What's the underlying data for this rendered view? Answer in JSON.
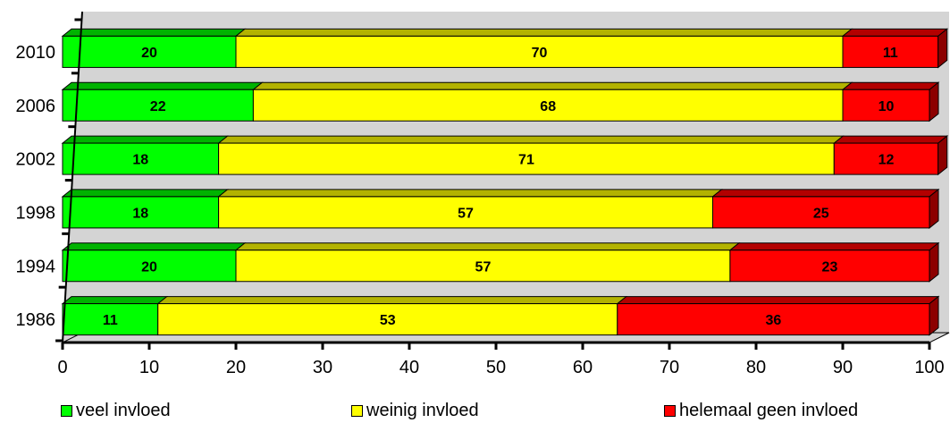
{
  "chart_data": {
    "type": "bar",
    "orientation": "horizontal",
    "stacked": true,
    "style": "3d",
    "categories": [
      "2010",
      "2006",
      "2002",
      "1998",
      "1994",
      "1986"
    ],
    "series": [
      {
        "name": "veel invloed",
        "color": "#00ff00",
        "values": [
          20,
          22,
          18,
          18,
          20,
          11
        ]
      },
      {
        "name": "weinig invloed",
        "color": "#ffff00",
        "values": [
          70,
          68,
          71,
          57,
          57,
          53
        ]
      },
      {
        "name": "helemaal geen invloed",
        "color": "#ff0000",
        "values": [
          11,
          10,
          12,
          25,
          23,
          36
        ]
      }
    ],
    "x_ticks": [
      "0",
      "10",
      "20",
      "30",
      "40",
      "50",
      "60",
      "70",
      "80",
      "90",
      "100"
    ],
    "xlim": [
      0,
      100
    ],
    "grid": false,
    "legend_position": "bottom"
  }
}
